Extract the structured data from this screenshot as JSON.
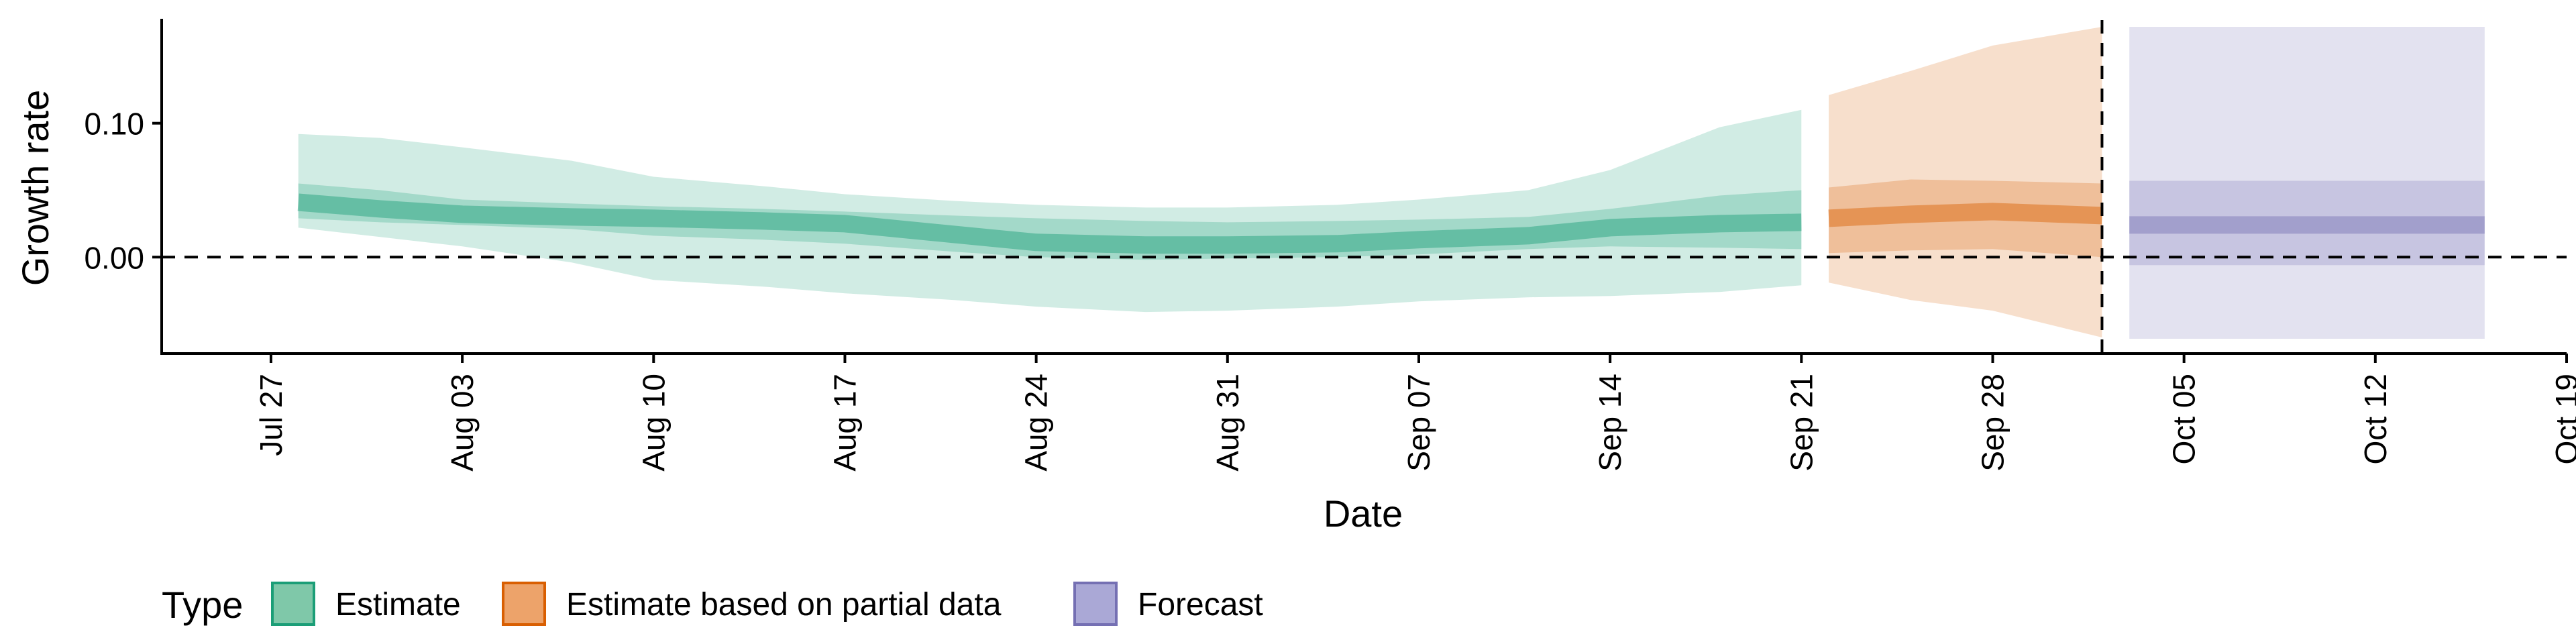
{
  "chart_data": {
    "type": "area",
    "title": "",
    "xlabel": "Date",
    "ylabel": "Growth rate",
    "x_range": [
      "2020-07-23",
      "2020-10-19"
    ],
    "ylim": [
      -0.072,
      0.178
    ],
    "yticks": [
      {
        "value": 0.0,
        "label": "0.00"
      },
      {
        "value": 0.1,
        "label": "0.10"
      }
    ],
    "xticks": [
      {
        "date": "2020-07-27",
        "label": "Jul 27"
      },
      {
        "date": "2020-08-03",
        "label": "Aug 03"
      },
      {
        "date": "2020-08-10",
        "label": "Aug 10"
      },
      {
        "date": "2020-08-17",
        "label": "Aug 17"
      },
      {
        "date": "2020-08-24",
        "label": "Aug 24"
      },
      {
        "date": "2020-08-31",
        "label": "Aug 31"
      },
      {
        "date": "2020-09-07",
        "label": "Sep 07"
      },
      {
        "date": "2020-09-14",
        "label": "Sep 14"
      },
      {
        "date": "2020-09-21",
        "label": "Sep 21"
      },
      {
        "date": "2020-09-28",
        "label": "Sep 28"
      },
      {
        "date": "2020-10-05",
        "label": "Oct 05"
      },
      {
        "date": "2020-10-12",
        "label": "Oct 12"
      },
      {
        "date": "2020-10-19",
        "label": "Oct 19"
      }
    ],
    "hline": {
      "y": 0.0,
      "style": "dashed"
    },
    "vline": {
      "date": "2020-10-02",
      "style": "dashed"
    },
    "grid": false,
    "legend": {
      "title": "Type",
      "position": "bottom-left",
      "items": [
        {
          "label": "Estimate",
          "fill": "#7fc8a9",
          "stroke": "#1b9e77"
        },
        {
          "label": "Estimate based on partial data",
          "fill": "#eda36a",
          "stroke": "#d95f02"
        },
        {
          "label": "Forecast",
          "fill": "#aaa8d6",
          "stroke": "#7570b3"
        }
      ]
    },
    "series": [
      {
        "name": "Estimate",
        "color": "#1b9e77",
        "points": [
          {
            "date": "2020-07-28",
            "median": 0.041,
            "lo90": 0.022,
            "hi90": 0.092,
            "lo50": 0.029,
            "hi50": 0.055
          },
          {
            "date": "2020-07-31",
            "median": 0.036,
            "lo90": 0.015,
            "hi90": 0.089,
            "lo50": 0.026,
            "hi50": 0.05
          },
          {
            "date": "2020-08-03",
            "median": 0.032,
            "lo90": 0.008,
            "hi90": 0.082,
            "lo50": 0.024,
            "hi50": 0.043
          },
          {
            "date": "2020-08-07",
            "median": 0.03,
            "lo90": -0.004,
            "hi90": 0.072,
            "lo50": 0.021,
            "hi50": 0.04
          },
          {
            "date": "2020-08-10",
            "median": 0.029,
            "lo90": -0.017,
            "hi90": 0.06,
            "lo50": 0.016,
            "hi50": 0.038
          },
          {
            "date": "2020-08-14",
            "median": 0.027,
            "lo90": -0.022,
            "hi90": 0.053,
            "lo50": 0.013,
            "hi50": 0.036
          },
          {
            "date": "2020-08-17",
            "median": 0.025,
            "lo90": -0.027,
            "hi90": 0.047,
            "lo50": 0.01,
            "hi50": 0.034
          },
          {
            "date": "2020-08-21",
            "median": 0.017,
            "lo90": -0.032,
            "hi90": 0.042,
            "lo50": 0.004,
            "hi50": 0.031
          },
          {
            "date": "2020-08-24",
            "median": 0.011,
            "lo90": -0.037,
            "hi90": 0.039,
            "lo50": 0.0,
            "hi50": 0.029
          },
          {
            "date": "2020-08-28",
            "median": 0.009,
            "lo90": -0.041,
            "hi90": 0.037,
            "lo50": -0.002,
            "hi50": 0.027
          },
          {
            "date": "2020-08-31",
            "median": 0.009,
            "lo90": -0.04,
            "hi90": 0.037,
            "lo50": -0.001,
            "hi50": 0.026
          },
          {
            "date": "2020-09-04",
            "median": 0.01,
            "lo90": -0.037,
            "hi90": 0.039,
            "lo50": 0.0,
            "hi50": 0.027
          },
          {
            "date": "2020-09-07",
            "median": 0.013,
            "lo90": -0.033,
            "hi90": 0.043,
            "lo50": 0.002,
            "hi50": 0.028
          },
          {
            "date": "2020-09-11",
            "median": 0.016,
            "lo90": -0.03,
            "hi90": 0.05,
            "lo50": 0.006,
            "hi50": 0.03
          },
          {
            "date": "2020-09-14",
            "median": 0.022,
            "lo90": -0.029,
            "hi90": 0.065,
            "lo50": 0.008,
            "hi50": 0.036
          },
          {
            "date": "2020-09-18",
            "median": 0.025,
            "lo90": -0.026,
            "hi90": 0.097,
            "lo50": 0.007,
            "hi50": 0.046
          },
          {
            "date": "2020-09-21",
            "median": 0.026,
            "lo90": -0.021,
            "hi90": 0.11,
            "lo50": 0.006,
            "hi50": 0.05
          }
        ]
      },
      {
        "name": "Estimate based on partial data",
        "color": "#d95f02",
        "points": [
          {
            "date": "2020-09-22",
            "median": 0.029,
            "lo90": -0.019,
            "hi90": 0.121,
            "lo50": 0.003,
            "hi50": 0.052
          },
          {
            "date": "2020-09-25",
            "median": 0.032,
            "lo90": -0.032,
            "hi90": 0.139,
            "lo50": 0.005,
            "hi50": 0.058
          },
          {
            "date": "2020-09-28",
            "median": 0.034,
            "lo90": -0.04,
            "hi90": 0.158,
            "lo50": 0.006,
            "hi50": 0.057
          },
          {
            "date": "2020-10-02",
            "median": 0.031,
            "lo90": -0.06,
            "hi90": 0.172,
            "lo50": 0.0,
            "hi50": 0.055
          }
        ]
      },
      {
        "name": "Forecast",
        "color": "#7570b3",
        "points": [
          {
            "date": "2020-10-03",
            "median": 0.024,
            "lo90": -0.061,
            "hi90": 0.172,
            "lo50": -0.006,
            "hi50": 0.057
          },
          {
            "date": "2020-10-16",
            "median": 0.024,
            "lo90": -0.061,
            "hi90": 0.172,
            "lo50": -0.006,
            "hi50": 0.057
          }
        ]
      }
    ]
  }
}
